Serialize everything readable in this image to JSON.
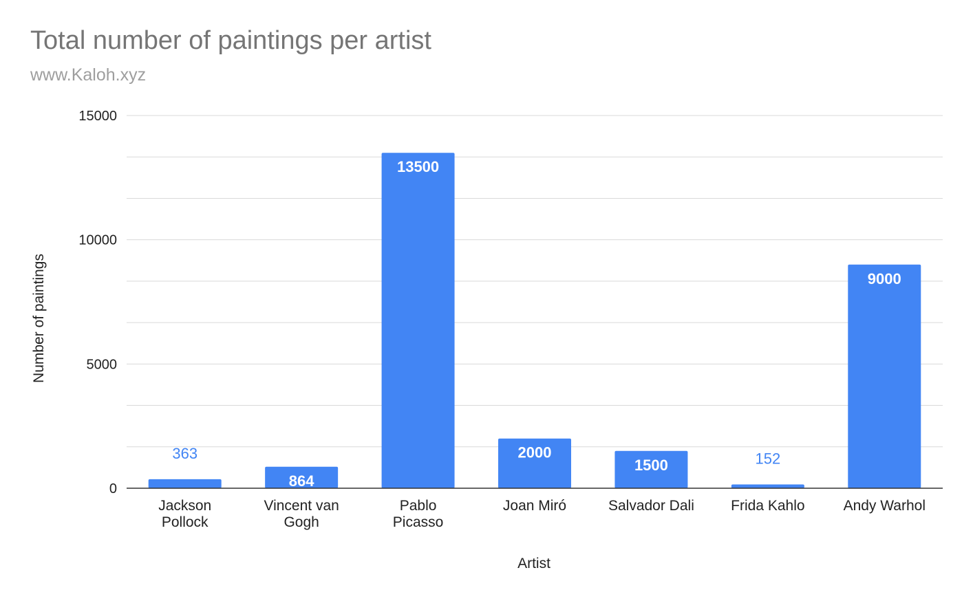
{
  "chart_data": {
    "type": "bar",
    "title": "Total number of paintings per artist",
    "subtitle": "www.Kaloh.xyz",
    "xlabel": "Artist",
    "ylabel": "Number of paintings",
    "ylim": [
      0,
      15000
    ],
    "yticks": [
      "0",
      "5000",
      "10000",
      "15000"
    ],
    "grid": true,
    "categories": [
      [
        "Jackson",
        "Pollock"
      ],
      [
        "Vincent van",
        "Gogh"
      ],
      [
        "Pablo",
        "Picasso"
      ],
      [
        "Joan Miró"
      ],
      [
        "Salvador Dali"
      ],
      [
        "Frida Kahlo"
      ],
      [
        "Andy Warhol"
      ]
    ],
    "values": [
      363,
      864,
      13500,
      2000,
      1500,
      152,
      9000
    ],
    "data_labels": [
      "363",
      "864",
      "13500",
      "2000",
      "1500",
      "152",
      "9000"
    ],
    "bar_color": "#4285f4",
    "grid_color": "#d9d9d9",
    "axis_color": "#333333"
  }
}
